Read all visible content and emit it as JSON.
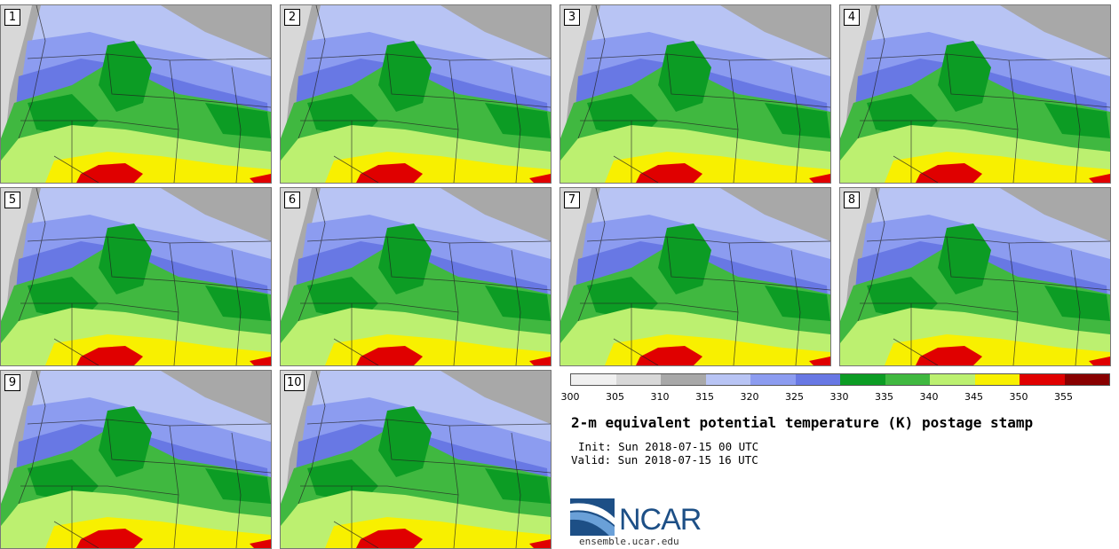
{
  "stamps": [
    {
      "label": "1"
    },
    {
      "label": "2"
    },
    {
      "label": "3"
    },
    {
      "label": "4"
    },
    {
      "label": "5"
    },
    {
      "label": "6"
    },
    {
      "label": "7"
    },
    {
      "label": "8"
    },
    {
      "label": "9"
    },
    {
      "label": "10"
    }
  ],
  "colorbar": {
    "ticks": [
      "300",
      "305",
      "310",
      "315",
      "320",
      "325",
      "330",
      "335",
      "340",
      "345",
      "350",
      "355"
    ],
    "colors": [
      "#f0f0f0",
      "#d8d8d8",
      "#a8a8a8",
      "#b8c4f4",
      "#8c9cf0",
      "#6878e4",
      "#0c9c24",
      "#40b840",
      "#bcf070",
      "#f8f000",
      "#e00000",
      "#880000"
    ]
  },
  "title": "2-m equivalent potential temperature (K) postage stamp",
  "init": "Init: Sun 2018-07-15 00 UTC",
  "valid": "Valid: Sun 2018-07-15 16 UTC",
  "logo": {
    "text": "NCAR",
    "site": "ensemble.ucar.edu"
  }
}
